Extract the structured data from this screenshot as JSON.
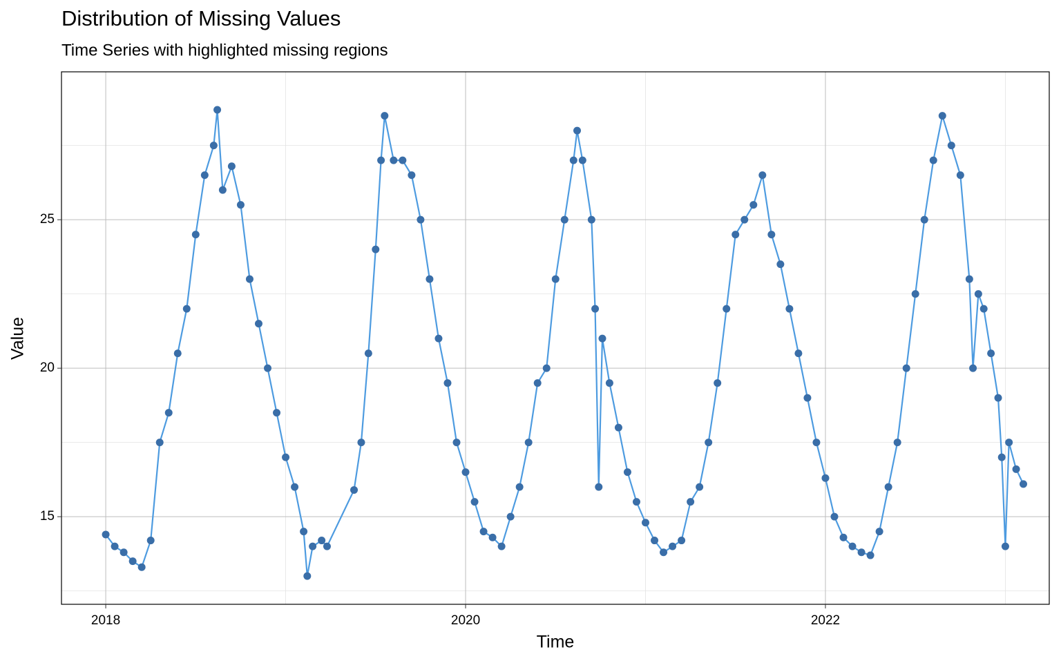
{
  "chart_data": {
    "type": "line",
    "title": "Distribution of Missing Values",
    "subtitle": "Time Series with highlighted missing regions",
    "x_label": "Time",
    "y_label": "Value",
    "x": [
      2018.0,
      2018.05,
      2018.1,
      2018.15,
      2018.2,
      2018.25,
      2018.3,
      2018.35,
      2018.4,
      2018.45,
      2018.5,
      2018.55,
      2018.6,
      2018.62,
      2018.65,
      2018.7,
      2018.75,
      2018.8,
      2018.85,
      2018.9,
      2018.95,
      2019.0,
      2019.05,
      2019.1,
      2019.12,
      2019.15,
      2019.2,
      2019.23,
      2019.38,
      2019.42,
      2019.46,
      2019.5,
      2019.53,
      2019.55,
      2019.6,
      2019.65,
      2019.7,
      2019.75,
      2019.8,
      2019.85,
      2019.9,
      2019.95,
      2020.0,
      2020.05,
      2020.1,
      2020.15,
      2020.2,
      2020.25,
      2020.3,
      2020.35,
      2020.4,
      2020.45,
      2020.5,
      2020.55,
      2020.6,
      2020.62,
      2020.65,
      2020.7,
      2020.72,
      2020.74,
      2020.76,
      2020.8,
      2020.85,
      2020.9,
      2020.95,
      2021.0,
      2021.05,
      2021.1,
      2021.15,
      2021.2,
      2021.25,
      2021.3,
      2021.35,
      2021.4,
      2021.45,
      2021.5,
      2021.55,
      2021.6,
      2021.65,
      2021.7,
      2021.75,
      2021.8,
      2021.85,
      2021.9,
      2021.95,
      2022.0,
      2022.05,
      2022.1,
      2022.15,
      2022.2,
      2022.25,
      2022.3,
      2022.35,
      2022.4,
      2022.45,
      2022.5,
      2022.55,
      2022.6,
      2022.65,
      2022.7,
      2022.75,
      2022.8,
      2022.82,
      2022.85,
      2022.88,
      2022.92,
      2022.96,
      2022.98,
      2023.0,
      2023.02,
      2023.06,
      2023.1
    ],
    "values": [
      14.4,
      14.0,
      13.8,
      13.5,
      13.3,
      14.2,
      17.5,
      18.5,
      20.5,
      22,
      24.5,
      26.5,
      27.5,
      28.7,
      26,
      26.8,
      25.5,
      23,
      21.5,
      20,
      18.5,
      17,
      16,
      14.5,
      13.0,
      14,
      14.2,
      14.0,
      15.9,
      17.5,
      20.5,
      24,
      27,
      28.5,
      27,
      27,
      26.5,
      25,
      23,
      21,
      19.5,
      17.5,
      16.5,
      15.5,
      14.5,
      14.3,
      14.0,
      15,
      16,
      17.5,
      19.5,
      20,
      23,
      25,
      27,
      28,
      27,
      25,
      22,
      16,
      21,
      19.5,
      18,
      16.5,
      15.5,
      14.8,
      14.2,
      13.8,
      14.0,
      14.2,
      15.5,
      16,
      17.5,
      19.5,
      22,
      24.5,
      25,
      25.5,
      26.5,
      24.5,
      23.5,
      22,
      20.5,
      19,
      17.5,
      16.3,
      15,
      14.3,
      14,
      13.8,
      13.7,
      14.5,
      16,
      17.5,
      20,
      22.5,
      25,
      27,
      28.5,
      27.5,
      26.5,
      23,
      20,
      22.5,
      22,
      20.5,
      19,
      17,
      14,
      17.5,
      16.6,
      16.1
    ],
    "line_color": "#4d9be0",
    "point_color": "#3a6ea8",
    "xlim": [
      2017.754,
      2023.244
    ],
    "ylim": [
      12.05,
      29.98
    ],
    "xticks": [
      2018,
      2020,
      2022
    ],
    "yticks": [
      15,
      20,
      25
    ],
    "x_minor_grid": [
      2019,
      2021,
      2023
    ],
    "y_minor_grid": [
      12.5,
      17.5,
      22.5,
      27.5
    ],
    "grid": true
  }
}
